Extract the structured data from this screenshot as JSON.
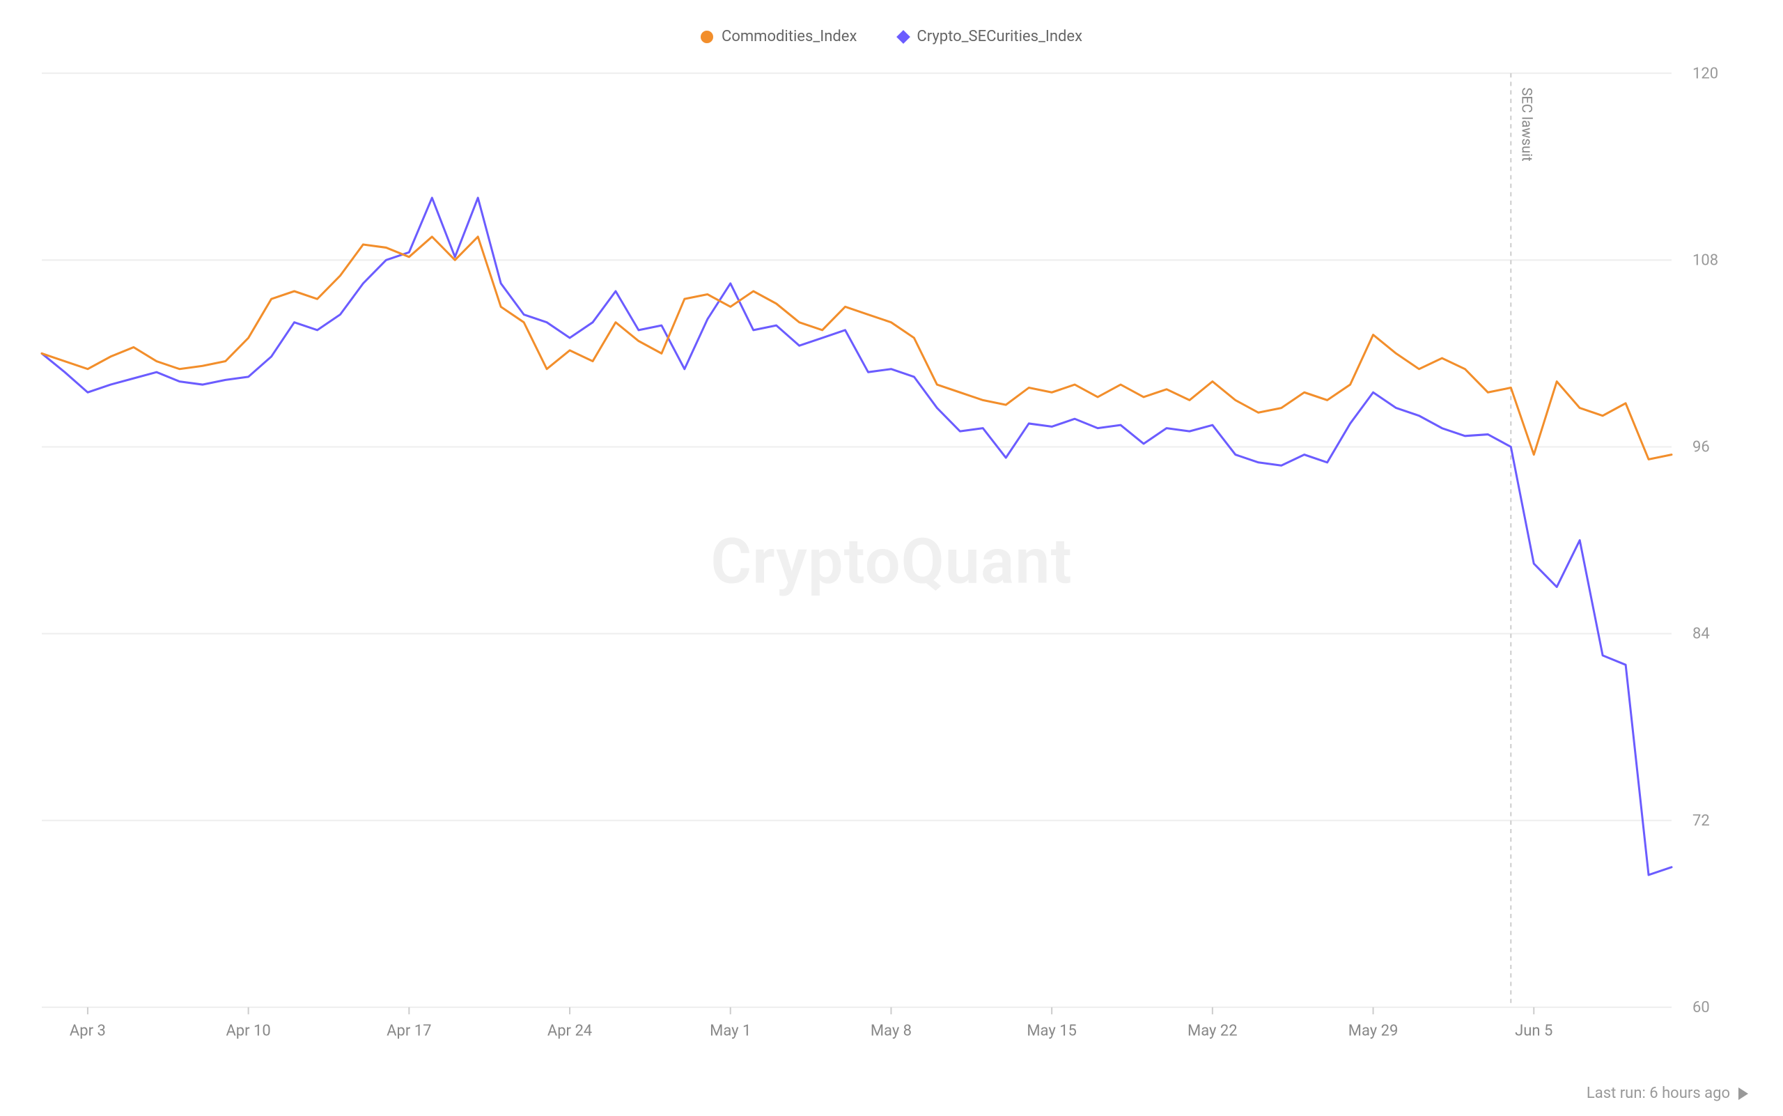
{
  "chart": {
    "type": "line",
    "watermark": "CryptoQuant",
    "background_color": "#ffffff",
    "grid_color": "#eeeeee",
    "axis_text_color": "#999999",
    "legend": [
      {
        "label": "Commodities_Index",
        "color": "#f28e2b",
        "marker": "circle"
      },
      {
        "label": "Crypto_SECurities_Index",
        "color": "#6b5cff",
        "marker": "diamond"
      }
    ],
    "ylim": [
      60,
      120
    ],
    "ytick_step": 12,
    "yticks": [
      60,
      72,
      84,
      96,
      108,
      120
    ],
    "x_labels": [
      "Apr 3",
      "Apr 10",
      "Apr 17",
      "Apr 24",
      "May 1",
      "May 8",
      "May 15",
      "May 22",
      "May 29",
      "Jun 5"
    ],
    "x_count": 72,
    "x_label_indices": [
      2,
      9,
      16,
      23,
      30,
      37,
      44,
      51,
      58,
      65
    ],
    "line_width": 3,
    "annotation": {
      "label": "SEC lawsuit",
      "x_index": 64,
      "color": "#cccccc",
      "dash": "6,6"
    },
    "series": {
      "commodities": {
        "color": "#f28e2b",
        "values": [
          102.0,
          101.5,
          101.0,
          101.8,
          102.4,
          101.5,
          101.0,
          101.2,
          101.5,
          103.0,
          105.5,
          106.0,
          105.5,
          107.0,
          109.0,
          108.8,
          108.2,
          109.5,
          108.0,
          109.5,
          105.0,
          104.0,
          101.0,
          102.2,
          101.5,
          104.0,
          102.8,
          102.0,
          105.5,
          105.8,
          105.0,
          106.0,
          105.2,
          104.0,
          103.5,
          105.0,
          104.5,
          104.0,
          103.0,
          100.0,
          99.5,
          99.0,
          98.7,
          99.8,
          99.5,
          100.0,
          99.2,
          100.0,
          99.2,
          99.7,
          99.0,
          100.2,
          99.0,
          98.2,
          98.5,
          99.5,
          99.0,
          100.0,
          103.2,
          102.0,
          101.0,
          101.7,
          101.0,
          99.5,
          99.8,
          95.5,
          100.2,
          98.5,
          98.0,
          98.8,
          95.2,
          95.5
        ]
      },
      "securities": {
        "color": "#6b5cff",
        "values": [
          102.0,
          100.8,
          99.5,
          100.0,
          100.4,
          100.8,
          100.2,
          100.0,
          100.3,
          100.5,
          101.8,
          104.0,
          103.5,
          104.5,
          106.5,
          108.0,
          108.5,
          112.0,
          108.2,
          112.0,
          106.5,
          104.5,
          104.0,
          103.0,
          104.0,
          106.0,
          103.5,
          103.8,
          101.0,
          104.2,
          106.5,
          103.5,
          103.8,
          102.5,
          103.0,
          103.5,
          100.8,
          101.0,
          100.5,
          98.5,
          97.0,
          97.2,
          95.3,
          97.5,
          97.3,
          97.8,
          97.2,
          97.4,
          96.2,
          97.2,
          97.0,
          97.4,
          95.5,
          95.0,
          94.8,
          95.5,
          95.0,
          97.5,
          99.5,
          98.5,
          98.0,
          97.2,
          96.7,
          96.8,
          96.0,
          88.5,
          87.0,
          90.0,
          82.6,
          82.0,
          68.5,
          69.0
        ]
      }
    }
  },
  "footer": {
    "last_run": "Last run: 6 hours ago"
  }
}
